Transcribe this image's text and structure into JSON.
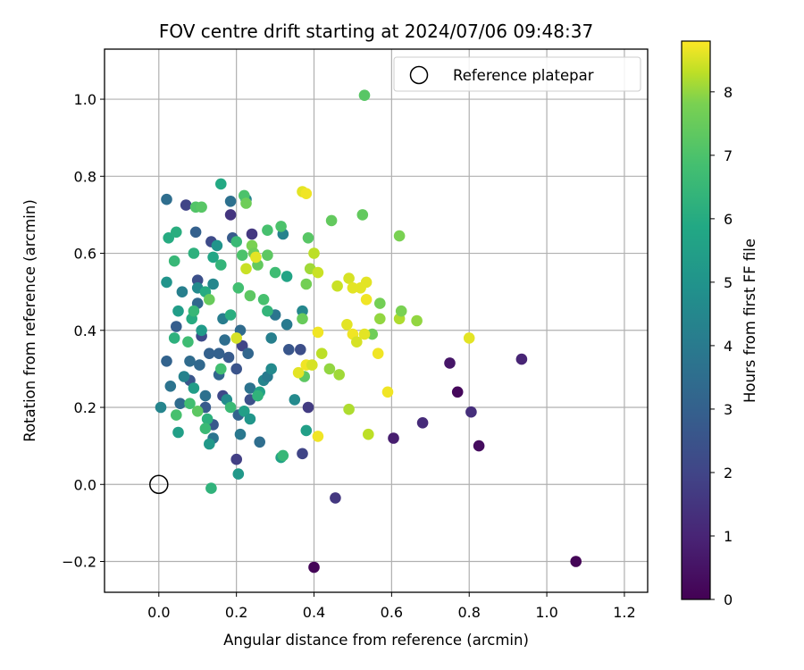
{
  "chart_data": {
    "type": "scatter",
    "title": "FOV centre drift starting at 2024/07/06 09:48:37",
    "xlabel": "Angular distance from reference (arcmin)",
    "ylabel": "Rotation from reference (arcmin)",
    "xlim": [
      -0.14,
      1.26
    ],
    "ylim": [
      -0.28,
      1.13
    ],
    "xticks": [
      "0.0",
      "0.2",
      "0.4",
      "0.6",
      "0.8",
      "1.0",
      "1.2"
    ],
    "yticks": [
      "−0.2",
      "0.0",
      "0.2",
      "0.4",
      "0.6",
      "0.8",
      "1.0"
    ],
    "grid": true,
    "legend": {
      "position": "top-right",
      "entries": [
        "Reference platepar"
      ]
    },
    "reference_point": {
      "x": 0.0,
      "y": 0.0,
      "marker": "open-circle"
    },
    "colorbar": {
      "label": "Hours from first FF file",
      "colormap": "viridis",
      "range": [
        0,
        8.8
      ],
      "ticks": [
        "0",
        "1",
        "2",
        "3",
        "4",
        "5",
        "6",
        "7",
        "8"
      ]
    },
    "series": [
      {
        "points": [
          [
            1.075,
            -0.2,
            0.1
          ],
          [
            0.4,
            -0.215,
            0.1
          ],
          [
            0.77,
            0.24,
            0.2
          ],
          [
            0.825,
            0.1,
            0.3
          ],
          [
            0.75,
            0.315,
            0.6
          ],
          [
            0.605,
            0.12,
            0.8
          ],
          [
            0.935,
            0.325,
            1.0
          ],
          [
            0.68,
            0.16,
            1.2
          ],
          [
            0.805,
            0.188,
            1.3
          ],
          [
            0.455,
            -0.035,
            1.6
          ],
          [
            0.2,
            0.065,
            1.8
          ],
          [
            0.385,
            0.2,
            1.7
          ],
          [
            0.37,
            0.08,
            2.0
          ],
          [
            0.185,
            0.7,
            1.5
          ],
          [
            0.24,
            0.65,
            1.6
          ],
          [
            0.07,
            0.725,
            2.0
          ],
          [
            0.135,
            0.63,
            2.2
          ],
          [
            0.1,
            0.53,
            2.4
          ],
          [
            0.365,
            0.35,
            2.3
          ],
          [
            0.335,
            0.35,
            2.6
          ],
          [
            0.2,
            0.3,
            2.5
          ],
          [
            0.11,
            0.385,
            2.2
          ],
          [
            0.215,
            0.36,
            2.0
          ],
          [
            0.165,
            0.23,
            2.1
          ],
          [
            0.19,
            0.64,
            2.8
          ],
          [
            0.095,
            0.655,
            3.0
          ],
          [
            0.045,
            0.41,
            2.9
          ],
          [
            0.14,
            0.155,
            2.7
          ],
          [
            0.235,
            0.22,
            2.4
          ],
          [
            0.08,
            0.27,
            2.6
          ],
          [
            0.18,
            0.33,
            2.8
          ],
          [
            0.13,
            0.34,
            3.0
          ],
          [
            0.155,
            0.285,
            3.2
          ],
          [
            0.12,
            0.2,
            2.8
          ],
          [
            0.205,
            0.18,
            3.1
          ],
          [
            0.26,
            0.11,
            3.5
          ],
          [
            0.08,
            0.32,
            3.4
          ],
          [
            0.1,
            0.47,
            3.3
          ],
          [
            0.02,
            0.74,
            3.5
          ],
          [
            0.185,
            0.735,
            3.6
          ],
          [
            0.02,
            0.32,
            3.1
          ],
          [
            0.105,
            0.31,
            3.3
          ],
          [
            0.055,
            0.21,
            3.4
          ],
          [
            0.12,
            0.23,
            3.6
          ],
          [
            0.21,
            0.4,
            3.4
          ],
          [
            0.235,
            0.25,
            3.7
          ],
          [
            0.23,
            0.34,
            3.2
          ],
          [
            0.155,
            0.34,
            3.0
          ],
          [
            0.17,
            0.375,
            3.5
          ],
          [
            0.14,
            0.12,
            3.8
          ],
          [
            0.03,
            0.255,
            3.7
          ],
          [
            0.21,
            0.13,
            3.9
          ],
          [
            0.3,
            0.44,
            3.8
          ],
          [
            0.33,
            0.415,
            4.0
          ],
          [
            0.29,
            0.38,
            4.2
          ],
          [
            0.27,
            0.27,
            4.4
          ],
          [
            0.35,
            0.22,
            4.6
          ],
          [
            0.28,
            0.28,
            4.0
          ],
          [
            0.225,
            0.74,
            4.4
          ],
          [
            0.32,
            0.65,
            4.3
          ],
          [
            0.37,
            0.45,
            4.5
          ],
          [
            0.29,
            0.3,
            4.6
          ],
          [
            0.165,
            0.43,
            4.1
          ],
          [
            0.06,
            0.5,
            4.2
          ],
          [
            0.1,
            0.51,
            4.6
          ],
          [
            0.14,
            0.52,
            4.5
          ],
          [
            0.175,
            0.22,
            4.7
          ],
          [
            0.065,
            0.28,
            4.3
          ],
          [
            0.005,
            0.2,
            4.4
          ],
          [
            0.02,
            0.525,
            5.0
          ],
          [
            0.15,
            0.62,
            5.0
          ],
          [
            0.205,
            0.027,
            5.2
          ],
          [
            0.13,
            0.105,
            5.2
          ],
          [
            0.05,
            0.135,
            5.5
          ],
          [
            0.315,
            0.07,
            5.6
          ],
          [
            0.38,
            0.14,
            5.5
          ],
          [
            0.11,
            0.4,
            5.3
          ],
          [
            0.09,
            0.25,
            5.4
          ],
          [
            0.26,
            0.24,
            5.6
          ],
          [
            0.22,
            0.19,
            5.5
          ],
          [
            0.235,
            0.17,
            5.1
          ],
          [
            0.33,
            0.54,
            5.7
          ],
          [
            0.05,
            0.45,
            5.4
          ],
          [
            0.14,
            0.59,
            5.8
          ],
          [
            0.16,
            0.78,
            5.9
          ],
          [
            0.025,
            0.64,
            6.0
          ],
          [
            0.045,
            0.655,
            6.1
          ],
          [
            0.12,
            0.5,
            6.0
          ],
          [
            0.09,
            0.6,
            6.2
          ],
          [
            0.04,
            0.38,
            6.2
          ],
          [
            0.085,
            0.43,
            6.0
          ],
          [
            0.135,
            -0.01,
            6.3
          ],
          [
            0.125,
            0.17,
            6.2
          ],
          [
            0.185,
            0.44,
            6.1
          ],
          [
            0.255,
            0.23,
            6.3
          ],
          [
            0.28,
            0.45,
            6.4
          ],
          [
            0.16,
            0.57,
            6.4
          ],
          [
            0.04,
            0.58,
            6.5
          ],
          [
            0.2,
            0.63,
            6.6
          ],
          [
            0.3,
            0.55,
            6.7
          ],
          [
            0.32,
            0.075,
            6.5
          ],
          [
            0.12,
            0.145,
            6.6
          ],
          [
            0.08,
            0.21,
            6.8
          ],
          [
            0.045,
            0.18,
            6.9
          ],
          [
            0.28,
            0.66,
            6.9
          ],
          [
            0.215,
            0.595,
            7.0
          ],
          [
            0.205,
            0.51,
            6.8
          ],
          [
            0.09,
            0.45,
            6.5
          ],
          [
            0.075,
            0.37,
            6.7
          ],
          [
            0.16,
            0.3,
            6.8
          ],
          [
            0.185,
            0.2,
            6.6
          ],
          [
            0.27,
            0.48,
            6.9
          ],
          [
            0.22,
            0.75,
            7.0
          ],
          [
            0.53,
            1.01,
            7.2
          ],
          [
            0.315,
            0.67,
            7.0
          ],
          [
            0.385,
            0.64,
            7.2
          ],
          [
            0.445,
            0.685,
            7.4
          ],
          [
            0.525,
            0.7,
            7.4
          ],
          [
            0.095,
            0.72,
            7.1
          ],
          [
            0.11,
            0.72,
            7.2
          ],
          [
            0.28,
            0.595,
            7.3
          ],
          [
            0.235,
            0.49,
            7.3
          ],
          [
            0.255,
            0.57,
            7.4
          ],
          [
            0.375,
            0.28,
            7.3
          ],
          [
            0.37,
            0.43,
            7.5
          ],
          [
            0.1,
            0.19,
            7.3
          ],
          [
            0.13,
            0.48,
            7.5
          ],
          [
            0.225,
            0.73,
            7.6
          ],
          [
            0.62,
            0.645,
            7.8
          ],
          [
            0.24,
            0.62,
            7.8
          ],
          [
            0.245,
            0.6,
            7.6
          ],
          [
            0.38,
            0.52,
            7.7
          ],
          [
            0.55,
            0.39,
            7.6
          ],
          [
            0.57,
            0.47,
            7.7
          ],
          [
            0.57,
            0.43,
            8.0
          ],
          [
            0.62,
            0.43,
            8.2
          ],
          [
            0.625,
            0.45,
            7.8
          ],
          [
            0.665,
            0.425,
            8.0
          ],
          [
            0.44,
            0.3,
            8.0
          ],
          [
            0.42,
            0.34,
            8.3
          ],
          [
            0.465,
            0.285,
            8.1
          ],
          [
            0.49,
            0.195,
            8.2
          ],
          [
            0.54,
            0.13,
            8.3
          ],
          [
            0.39,
            0.56,
            8.1
          ],
          [
            0.4,
            0.6,
            8.3
          ],
          [
            0.41,
            0.55,
            8.4
          ],
          [
            0.37,
            0.76,
            8.6
          ],
          [
            0.38,
            0.755,
            8.7
          ],
          [
            0.49,
            0.535,
            8.5
          ],
          [
            0.5,
            0.51,
            8.6
          ],
          [
            0.46,
            0.515,
            8.4
          ],
          [
            0.535,
            0.525,
            8.6
          ],
          [
            0.52,
            0.51,
            8.6
          ],
          [
            0.535,
            0.48,
            8.7
          ],
          [
            0.485,
            0.415,
            8.6
          ],
          [
            0.5,
            0.39,
            8.7
          ],
          [
            0.51,
            0.37,
            8.5
          ],
          [
            0.53,
            0.39,
            8.6
          ],
          [
            0.41,
            0.395,
            8.7
          ],
          [
            0.36,
            0.29,
            8.6
          ],
          [
            0.38,
            0.31,
            8.7
          ],
          [
            0.395,
            0.31,
            8.5
          ],
          [
            0.41,
            0.125,
            8.7
          ],
          [
            0.59,
            0.24,
            8.7
          ],
          [
            0.8,
            0.38,
            8.6
          ],
          [
            0.565,
            0.34,
            8.7
          ],
          [
            0.2,
            0.38,
            8.5
          ],
          [
            0.25,
            0.59,
            8.6
          ],
          [
            0.225,
            0.56,
            8.4
          ]
        ]
      }
    ]
  }
}
